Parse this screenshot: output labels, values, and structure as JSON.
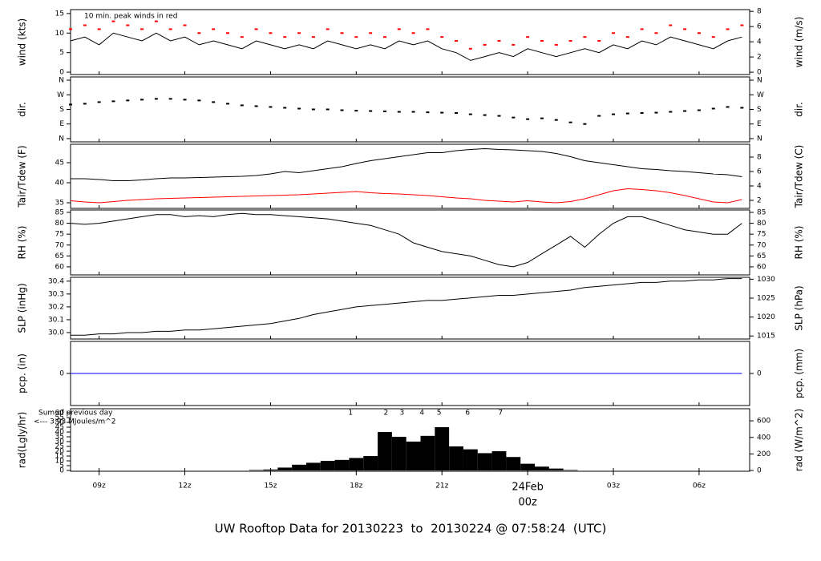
{
  "chart_data": {
    "type": "multi-panel",
    "title": "UW Rooftop Data for 20130223  to  20130224 @ 07:58:24  (UTC)",
    "title_color": "#0000cc",
    "xlim": [
      8.0,
      31.77
    ],
    "xticks": [
      {
        "value": 9,
        "label": "09z"
      },
      {
        "value": 12,
        "label": "12z"
      },
      {
        "value": 15,
        "label": "15z"
      },
      {
        "value": 18,
        "label": "18z"
      },
      {
        "value": 21,
        "label": "21z"
      },
      {
        "value": 24,
        "label": "24Feb",
        "sublabel": "00z",
        "color": "#dd0000"
      },
      {
        "value": 27,
        "label": "03z"
      },
      {
        "value": 30,
        "label": "06z"
      }
    ],
    "x": [
      8,
      8.5,
      9,
      9.5,
      10,
      10.5,
      11,
      11.5,
      12,
      12.5,
      13,
      13.5,
      14,
      14.5,
      15,
      15.5,
      16,
      16.5,
      17,
      17.5,
      18,
      18.5,
      19,
      19.5,
      20,
      20.5,
      21,
      21.5,
      22,
      22.5,
      23,
      23.5,
      24,
      24.5,
      25,
      25.5,
      26,
      26.5,
      27,
      27.5,
      28,
      28.5,
      29,
      29.5,
      30,
      30.5,
      31,
      31.5
    ],
    "panels": [
      {
        "ylabel": "wind (kts)",
        "y2label": "wind (m/s)",
        "ylim": [
          -0.6,
          16.0
        ],
        "yticks": [
          0,
          5,
          10,
          15
        ],
        "y2lim": [
          -0.31,
          8.23
        ],
        "y2ticks": [
          0,
          2,
          4,
          6,
          8
        ],
        "note": "10 min. peak winds in red",
        "note_color": "#ff0000",
        "series": [
          {
            "style": "line",
            "color": "#000000",
            "values": [
              8,
              9,
              7,
              10,
              9,
              8,
              10,
              8,
              9,
              7,
              8,
              7,
              6,
              8,
              7,
              6,
              7,
              6,
              8,
              7,
              6,
              7,
              6,
              8,
              7,
              8,
              6,
              5,
              3,
              4,
              5,
              4,
              6,
              5,
              4,
              5,
              6,
              5,
              7,
              6,
              8,
              7,
              9,
              8,
              7,
              6,
              8,
              9
            ]
          },
          {
            "style": "dots",
            "color": "#ff0000",
            "values": [
              11,
              12,
              11,
              13,
              12,
              11,
              13,
              11,
              12,
              10,
              11,
              10,
              9,
              11,
              10,
              9,
              10,
              9,
              11,
              10,
              9,
              10,
              9,
              11,
              10,
              11,
              9,
              8,
              6,
              7,
              8,
              7,
              9,
              8,
              7,
              8,
              9,
              8,
              10,
              9,
              11,
              10,
              12,
              11,
              10,
              9,
              11,
              12
            ]
          }
        ]
      },
      {
        "ylabel": "dir.",
        "y2label": "dir.",
        "ylim": [
          -20,
          380
        ],
        "yticks": [
          {
            "value": 0,
            "label": "N"
          },
          {
            "value": 90,
            "label": "E"
          },
          {
            "value": 180,
            "label": "S"
          },
          {
            "value": 270,
            "label": "W"
          },
          {
            "value": 360,
            "label": "N"
          }
        ],
        "y2lim": [
          -20,
          380
        ],
        "y2ticks": [
          {
            "value": 0,
            "label": "N"
          },
          {
            "value": 90,
            "label": "E"
          },
          {
            "value": 180,
            "label": "S"
          },
          {
            "value": 270,
            "label": "W"
          },
          {
            "value": 360,
            "label": "N"
          }
        ],
        "series": [
          {
            "style": "dots",
            "color": "#000000",
            "values": [
              210,
              215,
              225,
              230,
              235,
              240,
              245,
              245,
              240,
              235,
              225,
              215,
              205,
              200,
              195,
              190,
              185,
              180,
              180,
              175,
              172,
              170,
              168,
              165,
              165,
              162,
              160,
              158,
              150,
              145,
              140,
              130,
              120,
              125,
              115,
              100,
              90,
              140,
              150,
              155,
              158,
              160,
              165,
              170,
              175,
              185,
              195,
              190
            ]
          }
        ]
      },
      {
        "ylabel": "Tair/Tdew (F)",
        "y2label": "Tair/Tdew (C)",
        "ylim": [
          33.6,
          49.6
        ],
        "yticks": [
          35,
          40,
          45
        ],
        "y2lim": [
          0.89,
          9.78
        ],
        "y2ticks": [
          2,
          4,
          6,
          8
        ],
        "series": [
          {
            "style": "line",
            "color": "#000000",
            "values": [
              41,
              41,
              40.8,
              40.5,
              40.5,
              40.7,
              41,
              41.2,
              41.2,
              41.3,
              41.4,
              41.5,
              41.6,
              41.8,
              42.2,
              42.8,
              42.5,
              43,
              43.5,
              44,
              44.8,
              45.5,
              46,
              46.5,
              47,
              47.5,
              47.5,
              48,
              48.3,
              48.5,
              48.3,
              48.2,
              48,
              47.8,
              47.3,
              46.5,
              45.5,
              45,
              44.5,
              44,
              43.5,
              43.3,
              43,
              42.8,
              42.5,
              42.2,
              42,
              41.5
            ]
          },
          {
            "style": "line",
            "color": "#ff0000",
            "values": [
              35.5,
              35.2,
              35,
              35.3,
              35.6,
              35.8,
              36,
              36.1,
              36.2,
              36.3,
              36.4,
              36.5,
              36.6,
              36.7,
              36.8,
              36.9,
              37,
              37.2,
              37.4,
              37.6,
              37.8,
              37.5,
              37.3,
              37.2,
              37,
              36.8,
              36.5,
              36.2,
              36,
              35.6,
              35.4,
              35.2,
              35.5,
              35.2,
              35,
              35.3,
              36,
              37,
              38,
              38.5,
              38.3,
              38,
              37.5,
              36.8,
              36,
              35.2,
              35,
              35.8
            ]
          }
        ]
      },
      {
        "ylabel": "RH (%)",
        "y2label": "RH (%)",
        "ylim": [
          56.3,
          86.1
        ],
        "yticks": [
          60,
          65,
          70,
          75,
          80,
          85
        ],
        "y2lim": [
          56.3,
          86.1
        ],
        "y2ticks": [
          60,
          65,
          70,
          75,
          80,
          85
        ],
        "series": [
          {
            "style": "line",
            "color": "#000000",
            "values": [
              80,
              79.5,
              80,
              81,
              82,
              83,
              84,
              84,
              83,
              83.5,
              83,
              84,
              84.5,
              84,
              84,
              83.5,
              83,
              82.5,
              82,
              81,
              80,
              79,
              77,
              75,
              71,
              69,
              67,
              66,
              65,
              63,
              61,
              60,
              62,
              66,
              70,
              74,
              69,
              75,
              80,
              83,
              83,
              81,
              79,
              77,
              76,
              75,
              75,
              80
            ]
          }
        ]
      },
      {
        "ylabel": "SLP (inHg)",
        "y2label": "SLP (hPa)",
        "ylim": [
          29.95,
          30.43
        ],
        "yticks": [
          {
            "value": 30.0,
            "label": "30.0"
          },
          30.1,
          30.2,
          30.3,
          30.4
        ],
        "y2lim": [
          1014.2,
          1030.5
        ],
        "y2ticks": [
          1015,
          1020,
          1025,
          1030
        ],
        "series": [
          {
            "style": "line",
            "color": "#000000",
            "values": [
              29.98,
              29.98,
              29.99,
              29.99,
              30.0,
              30.0,
              30.01,
              30.01,
              30.02,
              30.02,
              30.03,
              30.04,
              30.05,
              30.06,
              30.07,
              30.09,
              30.11,
              30.14,
              30.16,
              30.18,
              30.2,
              30.21,
              30.22,
              30.23,
              30.24,
              30.25,
              30.25,
              30.26,
              30.27,
              30.28,
              30.29,
              30.29,
              30.3,
              30.31,
              30.32,
              30.33,
              30.35,
              30.36,
              30.37,
              30.38,
              30.39,
              30.39,
              30.4,
              30.4,
              30.41,
              30.41,
              30.42,
              30.42
            ]
          }
        ]
      },
      {
        "ylabel": "pcp. (in)",
        "y2label": "pcp. (mm)",
        "ylim": [
          -0.1,
          0.1
        ],
        "yticks": [
          0
        ],
        "y2lim": [
          -2.54,
          2.54
        ],
        "y2ticks": [
          0
        ],
        "series": [
          {
            "style": "line",
            "color": "#0000ff",
            "values": [
              0,
              0,
              0,
              0,
              0,
              0,
              0,
              0,
              0,
              0,
              0,
              0,
              0,
              0,
              0,
              0,
              0,
              0,
              0,
              0,
              0,
              0,
              0,
              0,
              0,
              0,
              0,
              0,
              0,
              0,
              0,
              0,
              0,
              0,
              0,
              0,
              0,
              0,
              0,
              0,
              0,
              0,
              0,
              0,
              0,
              0,
              0,
              0
            ]
          }
        ]
      },
      {
        "ylabel": "rad(Lgly/hr)",
        "y2label": "rad (W/m^2)",
        "ylim": [
          -0.8,
          64.2
        ],
        "yticks": [
          0,
          5,
          10,
          15,
          20,
          25,
          30,
          35,
          40,
          45,
          50,
          55,
          60
        ],
        "y2lim": [
          -9.3,
          746.6
        ],
        "y2ticks": [
          0,
          200,
          400,
          600
        ],
        "side_notes": [
          "Sum of previous day",
          "<--- 3.93 MJoules/m^2"
        ],
        "note_color": "#9900cc",
        "markers": {
          "x": [
            17.8,
            19.04,
            19.6,
            20.3,
            20.9,
            21.9,
            23.05
          ],
          "labels": [
            "1",
            "2",
            "3",
            "4",
            "5",
            "6",
            "7"
          ]
        },
        "series": [
          {
            "style": "bars",
            "color": "#000000",
            "values": [
              0,
              0,
              0,
              0,
              0,
              0,
              0,
              0,
              0,
              0,
              0,
              0,
              0,
              0.5,
              1,
              3,
              6,
              8,
              10,
              11,
              13,
              15,
              40,
              35,
              30,
              36,
              45,
              25,
              22,
              18,
              20,
              14,
              7,
              4,
              2,
              0.5,
              0,
              0,
              0,
              0,
              0,
              0,
              0,
              0,
              0,
              0,
              0,
              0
            ]
          }
        ]
      }
    ]
  }
}
